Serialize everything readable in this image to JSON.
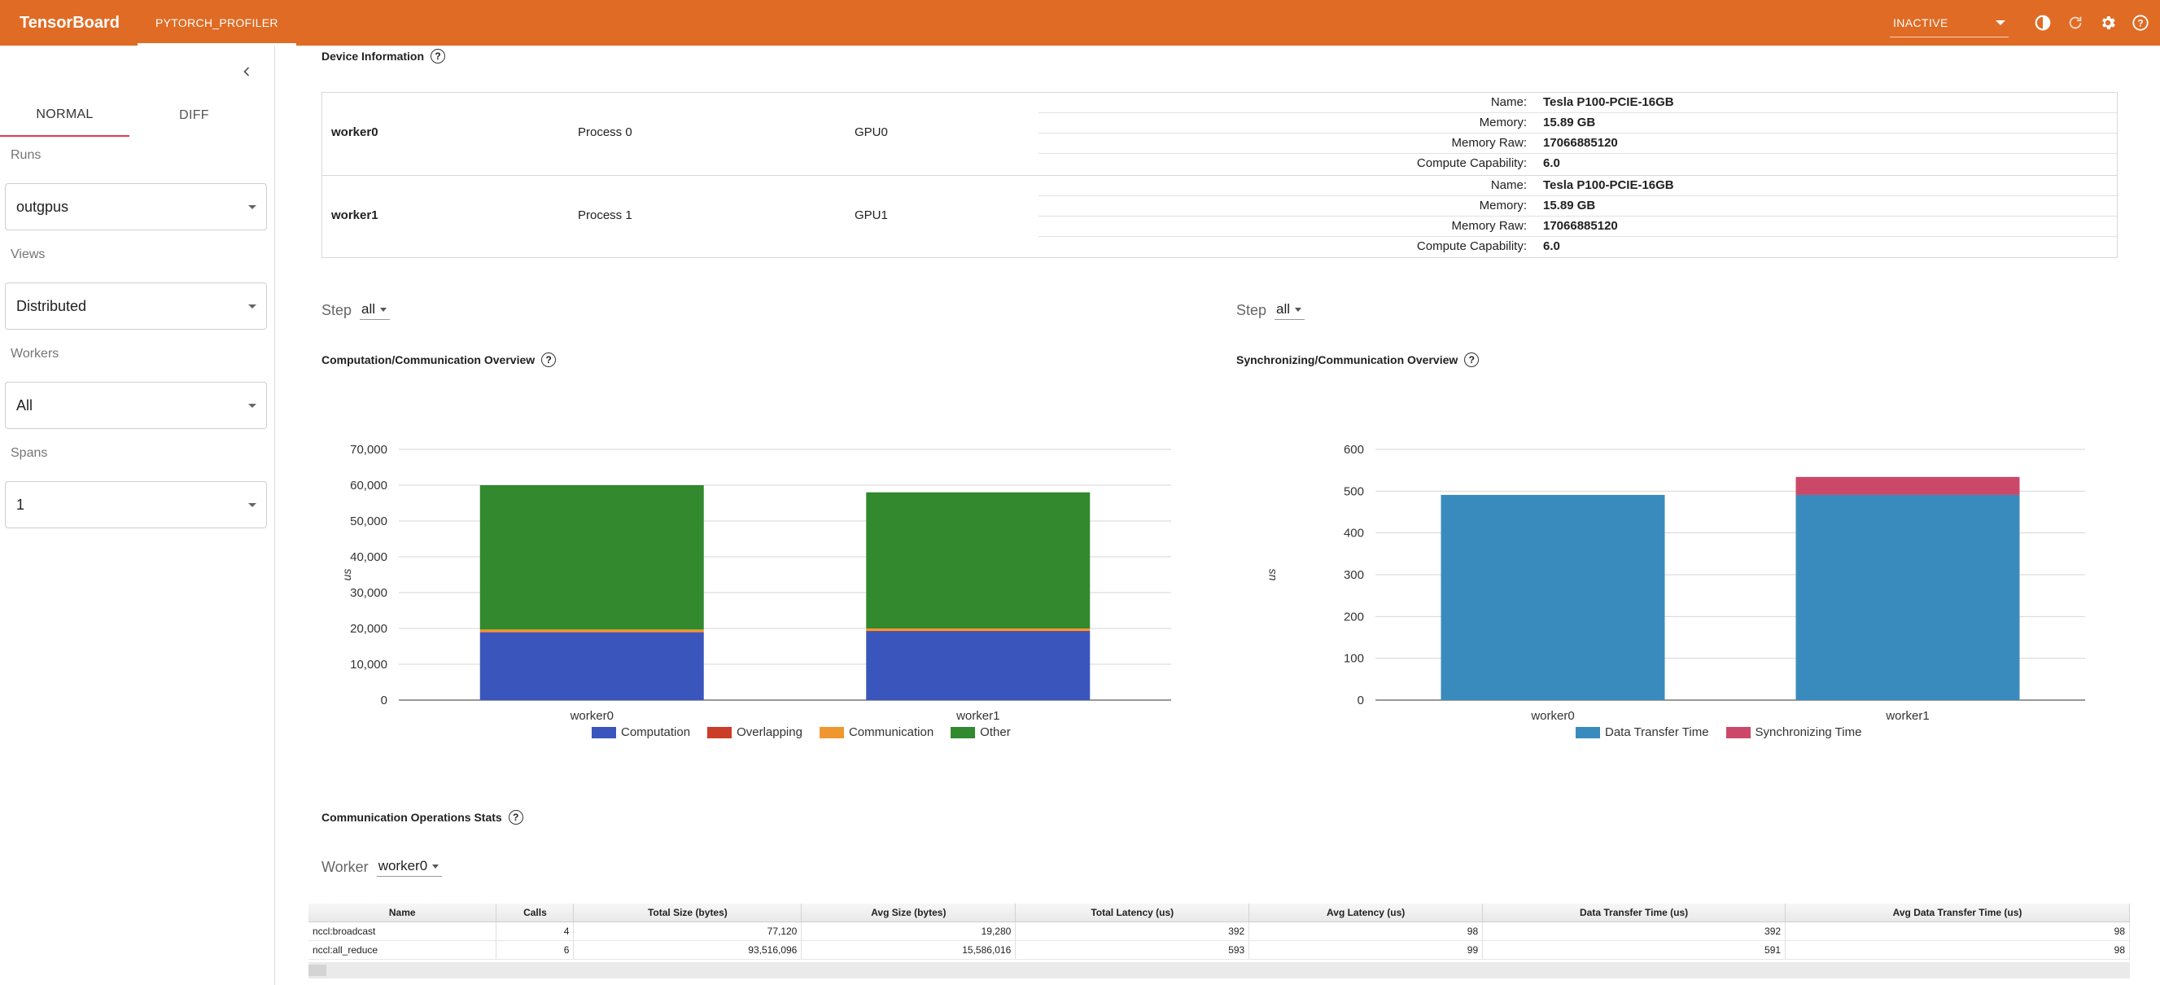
{
  "topbar": {
    "brand": "TensorBoard",
    "plugin_tab": "PYTORCH_PROFILER",
    "status_select": "INACTIVE",
    "color": "#e06b24"
  },
  "sidebar": {
    "tabs": [
      "NORMAL",
      "DIFF"
    ],
    "active_tab": "NORMAL",
    "runs_label": "Runs",
    "runs_value": "outgpus",
    "views_label": "Views",
    "views_value": "Distributed",
    "workers_label": "Workers",
    "workers_value": "All",
    "spans_label": "Spans",
    "spans_value": "1"
  },
  "device_info": {
    "title": "Device Information",
    "rows": [
      {
        "worker": "worker0",
        "process": "Process 0",
        "gpu": "GPU0",
        "props": [
          {
            "k": "Name:",
            "v": "Tesla P100-PCIE-16GB"
          },
          {
            "k": "Memory:",
            "v": "15.89 GB"
          },
          {
            "k": "Memory Raw:",
            "v": "17066885120"
          },
          {
            "k": "Compute Capability:",
            "v": "6.0"
          }
        ]
      },
      {
        "worker": "worker1",
        "process": "Process 1",
        "gpu": "GPU1",
        "props": [
          {
            "k": "Name:",
            "v": "Tesla P100-PCIE-16GB"
          },
          {
            "k": "Memory:",
            "v": "15.89 GB"
          },
          {
            "k": "Memory Raw:",
            "v": "17066885120"
          },
          {
            "k": "Compute Capability:",
            "v": "6.0"
          }
        ]
      }
    ]
  },
  "step_left": {
    "label": "Step",
    "value": "all"
  },
  "step_right": {
    "label": "Step",
    "value": "all"
  },
  "comp_title": "Computation/Communication Overview",
  "sync_title": "Synchronizing/Communication Overview",
  "chart_data": [
    {
      "type": "bar",
      "stacked": true,
      "title": "Computation/Communication Overview",
      "ylabel": "us",
      "categories": [
        "worker0",
        "worker1"
      ],
      "ylim": [
        0,
        70000
      ],
      "yticks": [
        "0",
        "10,000",
        "20,000",
        "30,000",
        "40,000",
        "50,000",
        "60,000",
        "70,000"
      ],
      "series": [
        {
          "name": "Computation",
          "color": "#3a56bd",
          "values": [
            18900,
            19200
          ]
        },
        {
          "name": "Overlapping",
          "color": "#cc3d27",
          "values": [
            150,
            150
          ]
        },
        {
          "name": "Communication",
          "color": "#f0962e",
          "values": [
            650,
            650
          ]
        },
        {
          "name": "Other",
          "color": "#32892e",
          "values": [
            40300,
            38000
          ]
        }
      ]
    },
    {
      "type": "bar",
      "stacked": true,
      "title": "Synchronizing/Communication Overview",
      "ylabel": "us",
      "categories": [
        "worker0",
        "worker1"
      ],
      "ylim": [
        0,
        600
      ],
      "yticks": [
        "0",
        "100",
        "200",
        "300",
        "400",
        "500",
        "600"
      ],
      "series": [
        {
          "name": "Data Transfer Time",
          "color": "#3a8bbd",
          "values": [
            491,
            491
          ]
        },
        {
          "name": "Synchronizing Time",
          "color": "#cc4869",
          "values": [
            0,
            43
          ]
        }
      ]
    }
  ],
  "comm_stats": {
    "title": "Communication Operations Stats",
    "worker_label": "Worker",
    "worker_value": "worker0",
    "columns": [
      "Name",
      "Calls",
      "Total Size (bytes)",
      "Avg Size (bytes)",
      "Total Latency (us)",
      "Avg Latency (us)",
      "Data Transfer Time (us)",
      "Avg Data Transfer Time (us)"
    ],
    "rows": [
      [
        "nccl:broadcast",
        "4",
        "77,120",
        "19,280",
        "392",
        "98",
        "392",
        "98"
      ],
      [
        "nccl:all_reduce",
        "6",
        "93,516,096",
        "15,586,016",
        "593",
        "99",
        "591",
        "98"
      ]
    ]
  }
}
